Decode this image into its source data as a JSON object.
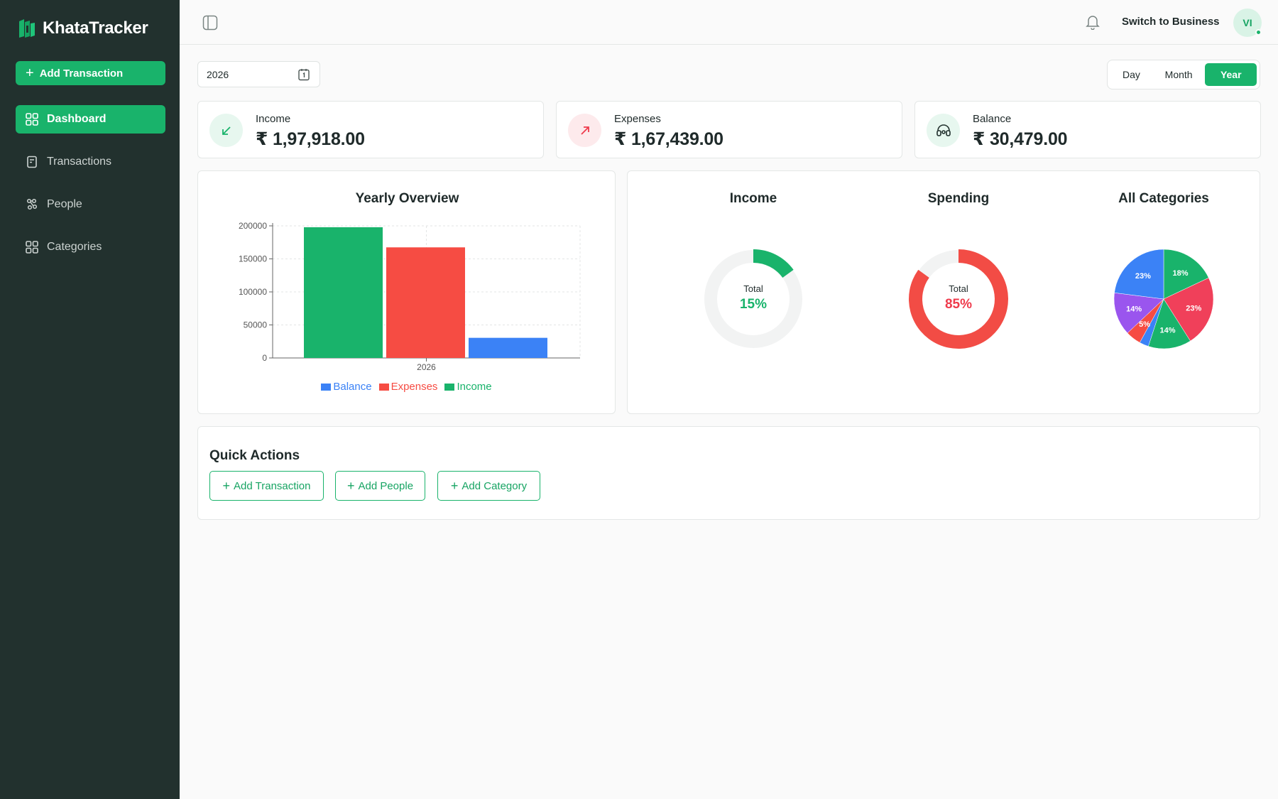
{
  "app": {
    "name": "KhataTracker",
    "add_transaction_label": "Add Transaction",
    "logo_color": "#19b36b"
  },
  "sidebar": {
    "items": [
      {
        "label": "Dashboard",
        "icon": "grid-icon",
        "active": true
      },
      {
        "label": "Transactions",
        "icon": "receipt-icon",
        "active": false
      },
      {
        "label": "People",
        "icon": "people-icon",
        "active": false
      },
      {
        "label": "Categories",
        "icon": "grid-icon",
        "active": false
      }
    ]
  },
  "header": {
    "switch_label": "Switch to Business",
    "avatar_initials": "VI"
  },
  "filters": {
    "date_value": "2026",
    "periods": [
      "Day",
      "Month",
      "Year"
    ],
    "active_period": "Year"
  },
  "stats": {
    "income": {
      "label": "Income",
      "value": "₹ 1,97,918.00",
      "icon": "arrow-down-left-icon",
      "color": "#19b36b",
      "bg": "#e7f7ef"
    },
    "expenses": {
      "label": "Expenses",
      "value": "₹ 1,67,439.00",
      "icon": "arrow-up-right-icon",
      "color": "#ef3b4c",
      "bg": "#fdeaec"
    },
    "balance": {
      "label": "Balance",
      "value": "₹ 30,479.00",
      "icon": "wallet-icon",
      "color": "#22312e",
      "bg": "#e7f7ef"
    }
  },
  "yearly_overview": {
    "title": "Yearly Overview"
  },
  "category_charts": {
    "income_title": "Income",
    "spending_title": "Spending",
    "all_title": "All Categories",
    "total_label": "Total",
    "income_pct": "15%",
    "spending_pct": "85%"
  },
  "quick_actions": {
    "title": "Quick Actions",
    "buttons": [
      "Add Transaction",
      "Add People",
      "Add Category"
    ]
  },
  "chart_data": [
    {
      "type": "bar",
      "title": "Yearly Overview",
      "categories": [
        "2026"
      ],
      "ylim": [
        0,
        200000
      ],
      "yticks": [
        0,
        50000,
        100000,
        150000,
        200000
      ],
      "grid": true,
      "legend_position": "bottom",
      "series": [
        {
          "name": "Income",
          "values": [
            197918
          ],
          "color": "#19b36b"
        },
        {
          "name": "Expenses",
          "values": [
            167439
          ],
          "color": "#f64c43"
        },
        {
          "name": "Balance",
          "values": [
            30479
          ],
          "color": "#3b82f6"
        }
      ],
      "legend_order": [
        "Balance",
        "Expenses",
        "Income"
      ]
    },
    {
      "type": "pie",
      "title": "Income",
      "center_label": "Total",
      "center_value": "15%",
      "values": [
        15
      ],
      "color": "#19b36b",
      "track_color": "#f2f3f3"
    },
    {
      "type": "pie",
      "title": "Spending",
      "center_label": "Total",
      "center_value": "85%",
      "values": [
        85
      ],
      "color": "#f24c45",
      "track_color": "#f2f3f3"
    },
    {
      "type": "pie",
      "title": "All Categories",
      "slices": [
        {
          "label": "18%",
          "value": 18,
          "color": "#19b36b"
        },
        {
          "label": "23%",
          "value": 23,
          "color": "#f0405a"
        },
        {
          "label": "14%",
          "value": 14,
          "color": "#19b36b"
        },
        {
          "label": "",
          "value": 3,
          "color": "#3b82f6"
        },
        {
          "label": "5%",
          "value": 5,
          "color": "#f64c43"
        },
        {
          "label": "14%",
          "value": 14,
          "color": "#9a55ee"
        },
        {
          "label": "23%",
          "value": 23,
          "color": "#3b82f6"
        }
      ]
    }
  ]
}
